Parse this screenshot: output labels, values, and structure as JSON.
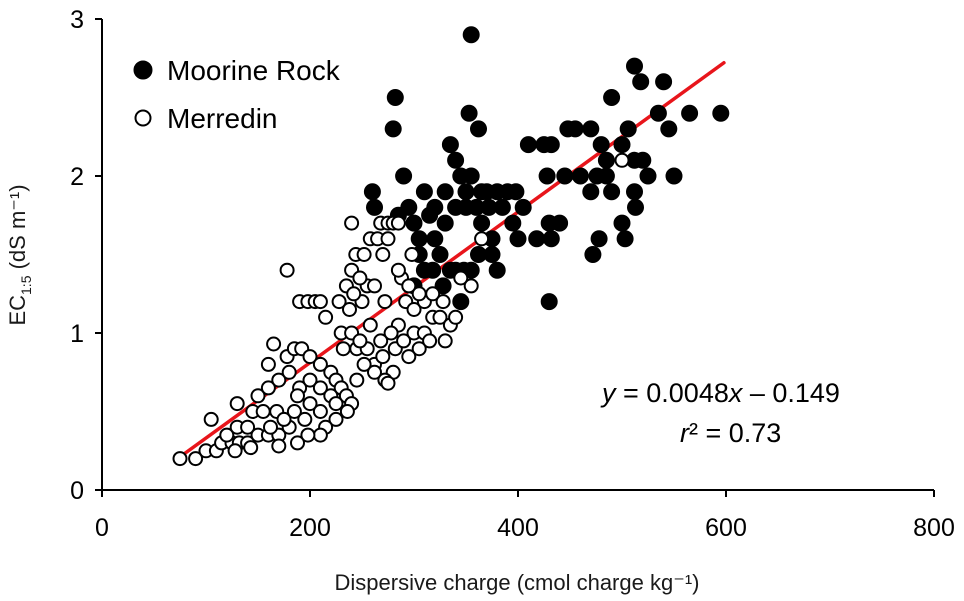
{
  "chart_data": {
    "type": "scatter",
    "title": "",
    "xlabel": "Dispersive charge (cmol charge kg⁻¹)",
    "ylabel": {
      "prefix": "EC",
      "subscript": "1:5",
      "suffix": " (dS m⁻¹)"
    },
    "xlim": [
      0,
      800
    ],
    "ylim": [
      0,
      3
    ],
    "xticks": [
      "0",
      "200",
      "400",
      "600",
      "800"
    ],
    "yticks": [
      "0",
      "1",
      "2",
      "3"
    ],
    "grid": false,
    "legend_position": "top-left",
    "colors": {
      "moorine": "#000000",
      "merredin_fill": "#ffffff",
      "merredin_stroke": "#000000",
      "fit": "#e8151b"
    },
    "series": [
      {
        "name": "Moorine Rock",
        "marker": "filled-circle",
        "points": [
          [
            355,
            2.9
          ],
          [
            282,
            2.5
          ],
          [
            280,
            2.3
          ],
          [
            353,
            2.4
          ],
          [
            362,
            2.3
          ],
          [
            335,
            2.2
          ],
          [
            340,
            2.1
          ],
          [
            345,
            2.0
          ],
          [
            330,
            1.9
          ],
          [
            310,
            1.9
          ],
          [
            320,
            1.8
          ],
          [
            340,
            1.8
          ],
          [
            350,
            1.8
          ],
          [
            360,
            1.8
          ],
          [
            372,
            1.8
          ],
          [
            385,
            1.8
          ],
          [
            295,
            1.8
          ],
          [
            300,
            1.7
          ],
          [
            305,
            1.6
          ],
          [
            260,
            1.9
          ],
          [
            262,
            1.8
          ],
          [
            290,
            2.0
          ],
          [
            380,
            1.9
          ],
          [
            370,
            1.9
          ],
          [
            365,
            1.9
          ],
          [
            390,
            1.9
          ],
          [
            398,
            1.9
          ],
          [
            410,
            2.2
          ],
          [
            425,
            2.2
          ],
          [
            432,
            2.2
          ],
          [
            428,
            2.0
          ],
          [
            448,
            2.3
          ],
          [
            455,
            2.3
          ],
          [
            470,
            2.3
          ],
          [
            430,
            1.7
          ],
          [
            418,
            1.6
          ],
          [
            440,
            1.7
          ],
          [
            432,
            1.6
          ],
          [
            405,
            1.8
          ],
          [
            395,
            1.7
          ],
          [
            400,
            1.6
          ],
          [
            445,
            2.0
          ],
          [
            460,
            2.0
          ],
          [
            470,
            1.9
          ],
          [
            476,
            2.0
          ],
          [
            480,
            2.2
          ],
          [
            485,
            2.0
          ],
          [
            490,
            1.9
          ],
          [
            478,
            1.6
          ],
          [
            472,
            1.5
          ],
          [
            485,
            2.1
          ],
          [
            490,
            2.5
          ],
          [
            500,
            2.2
          ],
          [
            506,
            2.3
          ],
          [
            512,
            2.1
          ],
          [
            520,
            2.1
          ],
          [
            525,
            2.0
          ],
          [
            518,
            2.6
          ],
          [
            512,
            2.7
          ],
          [
            535,
            2.4
          ],
          [
            540,
            2.6
          ],
          [
            545,
            2.3
          ],
          [
            550,
            2.0
          ],
          [
            565,
            2.4
          ],
          [
            595,
            2.4
          ],
          [
            512,
            1.9
          ],
          [
            513,
            1.8
          ],
          [
            500,
            1.7
          ],
          [
            503,
            1.6
          ],
          [
            340,
            1.4
          ],
          [
            335,
            1.4
          ],
          [
            348,
            1.4
          ],
          [
            355,
            1.4
          ],
          [
            380,
            1.4
          ],
          [
            375,
            1.5
          ],
          [
            362,
            1.5
          ],
          [
            328,
            1.3
          ],
          [
            345,
            1.2
          ],
          [
            320,
            1.6
          ],
          [
            330,
            1.7
          ],
          [
            430,
            1.2
          ],
          [
            310,
            1.4
          ],
          [
            318,
            1.4
          ],
          [
            300,
            1.3
          ],
          [
            305,
            1.5
          ],
          [
            325,
            1.5
          ],
          [
            315,
            1.75
          ],
          [
            285,
            1.75
          ],
          [
            355,
            2.0
          ],
          [
            365,
            1.7
          ],
          [
            375,
            1.6
          ],
          [
            350,
            1.9
          ]
        ]
      },
      {
        "name": "Merredin",
        "marker": "open-circle",
        "points": [
          [
            75,
            0.2
          ],
          [
            90,
            0.2
          ],
          [
            100,
            0.25
          ],
          [
            110,
            0.25
          ],
          [
            115,
            0.3
          ],
          [
            125,
            0.3
          ],
          [
            132,
            0.3
          ],
          [
            140,
            0.3
          ],
          [
            105,
            0.45
          ],
          [
            120,
            0.35
          ],
          [
            130,
            0.4
          ],
          [
            140,
            0.4
          ],
          [
            150,
            0.35
          ],
          [
            160,
            0.35
          ],
          [
            170,
            0.35
          ],
          [
            180,
            0.4
          ],
          [
            130,
            0.55
          ],
          [
            145,
            0.5
          ],
          [
            155,
            0.5
          ],
          [
            168,
            0.5
          ],
          [
            175,
            0.45
          ],
          [
            185,
            0.5
          ],
          [
            195,
            0.45
          ],
          [
            210,
            0.5
          ],
          [
            150,
            0.6
          ],
          [
            160,
            0.65
          ],
          [
            170,
            0.7
          ],
          [
            180,
            0.75
          ],
          [
            190,
            0.65
          ],
          [
            200,
            0.7
          ],
          [
            210,
            0.65
          ],
          [
            220,
            0.6
          ],
          [
            160,
            0.8
          ],
          [
            165,
            0.93
          ],
          [
            178,
            0.85
          ],
          [
            185,
            0.9
          ],
          [
            192,
            0.9
          ],
          [
            200,
            0.85
          ],
          [
            210,
            0.8
          ],
          [
            220,
            0.75
          ],
          [
            225,
            0.7
          ],
          [
            230,
            0.65
          ],
          [
            235,
            0.6
          ],
          [
            240,
            0.55
          ],
          [
            225,
            0.45
          ],
          [
            215,
            0.4
          ],
          [
            200,
            0.55
          ],
          [
            188,
            0.6
          ],
          [
            178,
            1.4
          ],
          [
            190,
            1.2
          ],
          [
            198,
            1.2
          ],
          [
            205,
            1.2
          ],
          [
            210,
            1.2
          ],
          [
            215,
            1.1
          ],
          [
            228,
            1.2
          ],
          [
            235,
            1.3
          ],
          [
            240,
            1.4
          ],
          [
            244,
            1.5
          ],
          [
            252,
            1.5
          ],
          [
            258,
            1.6
          ],
          [
            265,
            1.6
          ],
          [
            270,
            1.5
          ],
          [
            275,
            1.6
          ],
          [
            268,
            1.7
          ],
          [
            275,
            1.7
          ],
          [
            280,
            1.7
          ],
          [
            285,
            1.7
          ],
          [
            240,
            1.7
          ],
          [
            250,
            1.2
          ],
          [
            255,
            1.3
          ],
          [
            262,
            1.3
          ],
          [
            272,
            1.2
          ],
          [
            230,
            1.0
          ],
          [
            240,
            1.0
          ],
          [
            245,
            0.9
          ],
          [
            255,
            0.9
          ],
          [
            262,
            0.8
          ],
          [
            270,
            0.85
          ],
          [
            282,
            0.9
          ],
          [
            290,
            0.95
          ],
          [
            300,
            1.0
          ],
          [
            305,
            0.9
          ],
          [
            310,
            1.0
          ],
          [
            318,
            1.1
          ],
          [
            325,
            1.1
          ],
          [
            335,
            1.05
          ],
          [
            285,
            1.05
          ],
          [
            292,
            1.2
          ],
          [
            300,
            1.15
          ],
          [
            310,
            1.2
          ],
          [
            318,
            1.25
          ],
          [
            328,
            1.2
          ],
          [
            330,
            0.95
          ],
          [
            340,
            1.1
          ],
          [
            295,
            0.85
          ],
          [
            280,
            0.75
          ],
          [
            272,
            0.7
          ],
          [
            262,
            0.75
          ],
          [
            252,
            0.8
          ],
          [
            245,
            0.7
          ],
          [
            275,
            0.68
          ],
          [
            232,
            0.9
          ],
          [
            238,
            1.15
          ],
          [
            242,
            1.25
          ],
          [
            248,
            1.35
          ],
          [
            288,
            1.35
          ],
          [
            298,
            1.5
          ],
          [
            305,
            1.25
          ],
          [
            285,
            1.4
          ],
          [
            295,
            1.3
          ],
          [
            315,
            0.95
          ],
          [
            268,
            0.95
          ],
          [
            278,
            1.0
          ],
          [
            258,
            1.05
          ],
          [
            248,
            0.95
          ],
          [
            500,
            2.1
          ],
          [
            365,
            1.6
          ],
          [
            355,
            1.3
          ],
          [
            345,
            1.35
          ],
          [
            210,
            0.35
          ],
          [
            225,
            0.55
          ],
          [
            236,
            0.5
          ],
          [
            198,
            0.35
          ],
          [
            188,
            0.3
          ],
          [
            170,
            0.28
          ],
          [
            162,
            0.4
          ],
          [
            143,
            0.27
          ],
          [
            128,
            0.25
          ]
        ]
      }
    ],
    "trendline": {
      "slope": 0.0048,
      "intercept": -0.149,
      "x_range": [
        75,
        598
      ]
    },
    "annotations": {
      "equation": "y = 0.0048x – 0.149",
      "r2": "r² = 0.73"
    }
  }
}
